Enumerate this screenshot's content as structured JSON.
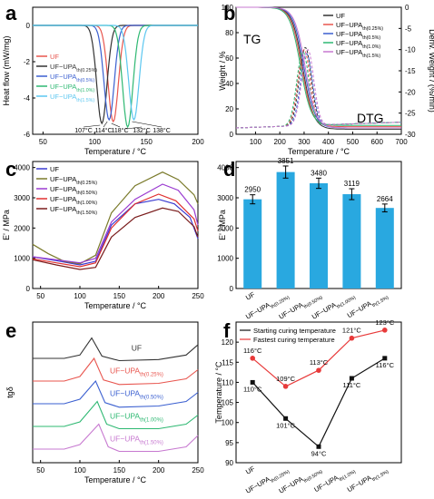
{
  "panels": {
    "a": {
      "letter": "a"
    },
    "b": {
      "letter": "b",
      "tg_label": "TG",
      "dtg_label": "DTG"
    },
    "c": {
      "letter": "c"
    },
    "d": {
      "letter": "d"
    },
    "e": {
      "letter": "e"
    },
    "f": {
      "letter": "f"
    }
  },
  "chart_data": [
    {
      "id": "a",
      "type": "line",
      "xlabel": "Temperature / °C",
      "ylabel": "Heat flow (mW/mg)",
      "xlim": [
        40,
        200
      ],
      "ylim": [
        -6,
        1
      ],
      "xticks": [
        50,
        100,
        150,
        200
      ],
      "yticks": [
        0,
        -2,
        -4,
        -6
      ],
      "legend_position": "left",
      "series": [
        {
          "name": "UF",
          "color": "#e8554e",
          "peak_x": 118,
          "peak_y": -5.3
        },
        {
          "name": "UF−UPA_{th(0.25%)}",
          "color": "#333333",
          "peak_x": 107,
          "peak_y": -5.4
        },
        {
          "name": "UF−UPA_{th(0.5%)}",
          "color": "#3a5fd0",
          "peak_x": 114,
          "peak_y": -5.2
        },
        {
          "name": "UF−UPA_{th(1.0%)}",
          "color": "#2eb872",
          "peak_x": 132,
          "peak_y": -5.6
        },
        {
          "name": "UF−UPA_{th(1.5%)}",
          "color": "#5cc7f0",
          "peak_x": 138,
          "peak_y": -5.2
        }
      ],
      "annotations": [
        "107°C",
        "114°C",
        "118°C",
        "132°C",
        "138°C"
      ]
    },
    {
      "id": "b",
      "type": "line",
      "xlabel": "Temperature / °C",
      "ylabel": "Weight / %",
      "ylabel_right": "Deriv. Weight / (%/min)",
      "xlim": [
        20,
        700
      ],
      "ylim": [
        0,
        100
      ],
      "ylim_right": [
        -30,
        0
      ],
      "xticks": [
        100,
        200,
        300,
        400,
        500,
        600,
        700
      ],
      "yticks": [
        0,
        20,
        40,
        60,
        80,
        100
      ],
      "yticks_right": [
        0,
        -5,
        -10,
        -15,
        -20,
        -25,
        -30
      ],
      "legend_position": "top-right",
      "series": [
        {
          "name": "UF",
          "color": "#333333",
          "residue": 4,
          "dtg_peak_x": 305,
          "dtg_peak_y": -9.5
        },
        {
          "name": "UF−UPA_{th(0.25%)}",
          "color": "#e8554e",
          "residue": 6,
          "dtg_peak_x": 300,
          "dtg_peak_y": -10
        },
        {
          "name": "UF−UPA_{th(0.5%)}",
          "color": "#3a5fd0",
          "residue": 5,
          "dtg_peak_x": 310,
          "dtg_peak_y": -11
        },
        {
          "name": "UF−UPA_{th(1.0%)}",
          "color": "#2eb872",
          "residue": 7,
          "dtg_peak_x": 295,
          "dtg_peak_y": -10.5
        },
        {
          "name": "UF−UPA_{th(1.5%)}",
          "color": "#c779d0",
          "residue": 5,
          "dtg_peak_x": 315,
          "dtg_peak_y": -10
        }
      ]
    },
    {
      "id": "c",
      "type": "line",
      "xlabel": "Temperature / °C",
      "ylabel": "E' / MPa",
      "xlim": [
        40,
        250
      ],
      "ylim": [
        0,
        4200
      ],
      "xticks": [
        50,
        100,
        150,
        200,
        250
      ],
      "yticks": [
        0,
        1000,
        2000,
        3000,
        4000
      ],
      "legend_position": "top-left",
      "series": [
        {
          "name": "UF",
          "color": "#3a3ad0",
          "points": [
            [
              40,
              1050
            ],
            [
              70,
              920
            ],
            [
              100,
              780
            ],
            [
              120,
              900
            ],
            [
              140,
              2100
            ],
            [
              170,
              2800
            ],
            [
              200,
              2950
            ],
            [
              220,
              2800
            ],
            [
              240,
              2350
            ],
            [
              250,
              1650
            ]
          ]
        },
        {
          "name": "UF−UPA_{th(0.25%)}",
          "color": "#7a7a2a",
          "points": [
            [
              40,
              1460
            ],
            [
              60,
              1150
            ],
            [
              80,
              900
            ],
            [
              100,
              820
            ],
            [
              120,
              1100
            ],
            [
              140,
              2500
            ],
            [
              170,
              3400
            ],
            [
              205,
              3850
            ],
            [
              225,
              3600
            ],
            [
              245,
              3100
            ],
            [
              250,
              2800
            ]
          ]
        },
        {
          "name": "UF−UPA_{th(0.50%)}",
          "color": "#9a3ad0",
          "points": [
            [
              40,
              1050
            ],
            [
              70,
              950
            ],
            [
              100,
              850
            ],
            [
              120,
              1000
            ],
            [
              140,
              2200
            ],
            [
              170,
              2950
            ],
            [
              205,
              3450
            ],
            [
              225,
              3250
            ],
            [
              245,
              2600
            ],
            [
              250,
              2100
            ]
          ]
        },
        {
          "name": "UF−UPA_{th(1.00%)}",
          "color": "#e03030",
          "points": [
            [
              40,
              980
            ],
            [
              70,
              850
            ],
            [
              100,
              720
            ],
            [
              120,
              850
            ],
            [
              140,
              2000
            ],
            [
              170,
              2800
            ],
            [
              200,
              3120
            ],
            [
              222,
              2900
            ],
            [
              245,
              2300
            ],
            [
              250,
              1900
            ]
          ]
        },
        {
          "name": "UF−UPA_{th(1.50%)}",
          "color": "#7a1c1c",
          "points": [
            [
              40,
              950
            ],
            [
              70,
              780
            ],
            [
              100,
              630
            ],
            [
              120,
              700
            ],
            [
              140,
              1700
            ],
            [
              170,
              2350
            ],
            [
              205,
              2660
            ],
            [
              225,
              2550
            ],
            [
              245,
              2050
            ],
            [
              250,
              1700
            ]
          ]
        }
      ]
    },
    {
      "id": "d",
      "type": "bar",
      "ylabel": "E' / MPa",
      "categories": [
        "UF",
        "UF−UPA_{th(0.25%)}",
        "UF−UPA_{th(0.50%)}",
        "UF−UPA_{th(1.00%)}",
        "UF−UPA_{th(1.5%)}"
      ],
      "values": [
        2950,
        3851,
        3480,
        3119,
        2664
      ],
      "errors": [
        150,
        200,
        170,
        180,
        130
      ],
      "ylim": [
        0,
        4200
      ],
      "yticks": [
        0,
        1000,
        2000,
        3000,
        4000
      ],
      "bar_color": "#29a8e0"
    },
    {
      "id": "e",
      "type": "line",
      "xlabel": "Temperature / °C",
      "ylabel": "tgδ",
      "xlim": [
        40,
        250
      ],
      "xticks": [
        50,
        100,
        150,
        200,
        250
      ],
      "series": [
        {
          "name": "UF",
          "color": "#333333",
          "offset": 4,
          "points": [
            [
              40,
              0.3
            ],
            [
              80,
              0.3
            ],
            [
              100,
              0.45
            ],
            [
              115,
              1.2
            ],
            [
              128,
              0.4
            ],
            [
              150,
              0.2
            ],
            [
              200,
              0.25
            ],
            [
              235,
              0.45
            ],
            [
              250,
              0.9
            ]
          ]
        },
        {
          "name": "UF−UPA_{th(0.25%)}",
          "color": "#e8554e",
          "offset": 3,
          "points": [
            [
              40,
              0.3
            ],
            [
              80,
              0.3
            ],
            [
              100,
              0.5
            ],
            [
              118,
              1.3
            ],
            [
              130,
              0.35
            ],
            [
              150,
              0.15
            ],
            [
              200,
              0.2
            ],
            [
              235,
              0.4
            ],
            [
              250,
              0.8
            ]
          ]
        },
        {
          "name": "UF−UPA_{th(0.50%)}",
          "color": "#3a5fd0",
          "offset": 2,
          "points": [
            [
              40,
              0.3
            ],
            [
              80,
              0.3
            ],
            [
              100,
              0.5
            ],
            [
              120,
              1.3
            ],
            [
              132,
              0.35
            ],
            [
              150,
              0.15
            ],
            [
              200,
              0.2
            ],
            [
              235,
              0.4
            ],
            [
              250,
              0.8
            ]
          ]
        },
        {
          "name": "UF−UPA_{th(1.00%)}",
          "color": "#2eb872",
          "offset": 1,
          "points": [
            [
              40,
              0.3
            ],
            [
              80,
              0.3
            ],
            [
              100,
              0.5
            ],
            [
              122,
              1.4
            ],
            [
              134,
              0.4
            ],
            [
              150,
              0.2
            ],
            [
              200,
              0.2
            ],
            [
              235,
              0.4
            ],
            [
              250,
              0.8
            ]
          ]
        },
        {
          "name": "UF−UPA_{th(1.50%)}",
          "color": "#c779d0",
          "offset": 0,
          "points": [
            [
              40,
              0.3
            ],
            [
              80,
              0.3
            ],
            [
              100,
              0.5
            ],
            [
              124,
              1.4
            ],
            [
              136,
              0.4
            ],
            [
              150,
              0.2
            ],
            [
              200,
              0.2
            ],
            [
              235,
              0.4
            ],
            [
              250,
              0.9
            ]
          ]
        }
      ]
    },
    {
      "id": "f",
      "type": "line",
      "ylabel": "Temperature / °C",
      "categories": [
        "UF",
        "UF−UPA_{th(0.25%)}",
        "UF−UPA_{th(0.50%)}",
        "UF−UPA_{th(1.0%)}",
        "UF−UPA_{th(1.5%)}"
      ],
      "ylim": [
        90,
        125
      ],
      "yticks": [
        90,
        95,
        100,
        105,
        110,
        115,
        120
      ],
      "legend_position": "top-left",
      "series": [
        {
          "name": "Starting curing temperature",
          "color": "#111111",
          "marker": "square",
          "values": [
            110,
            101,
            94,
            111,
            116
          ],
          "labels": [
            "110°C",
            "101°C",
            "94°C",
            "111°C",
            "116°C"
          ]
        },
        {
          "name": "Fastest curing temperature",
          "color": "#e83a3a",
          "marker": "circle",
          "values": [
            116,
            109,
            113,
            121,
            123
          ],
          "labels": [
            "116°C",
            "109°C",
            "113°C",
            "121°C",
            "123°C"
          ]
        }
      ]
    }
  ]
}
